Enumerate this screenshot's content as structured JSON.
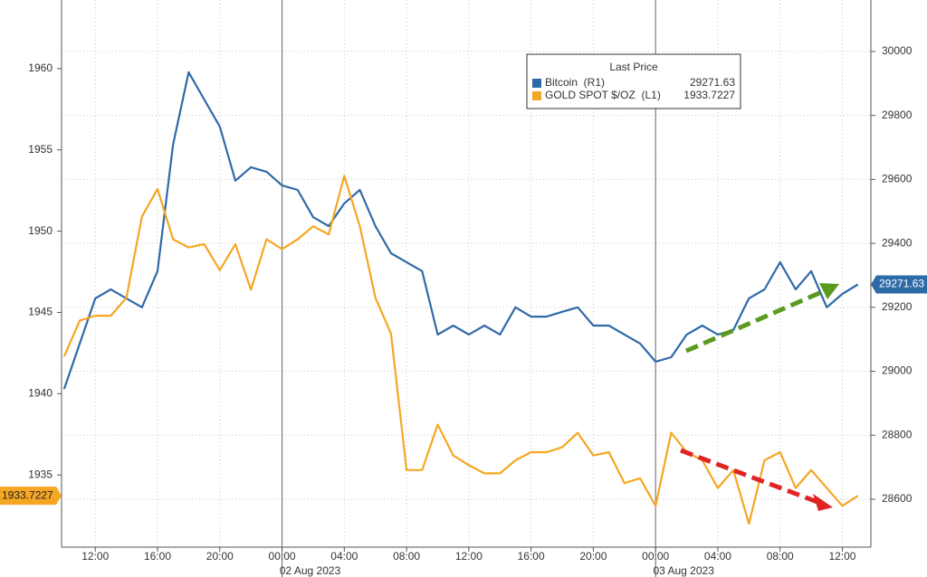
{
  "chart_data": {
    "type": "line",
    "legend_title": "Last Price",
    "date_labels": [
      "02 Aug 2023",
      "03 Aug 2023"
    ],
    "x": [
      "2023-08-01 10:00",
      "2023-08-01 11:00",
      "2023-08-01 12:00",
      "2023-08-01 13:00",
      "2023-08-01 14:00",
      "2023-08-01 15:00",
      "2023-08-01 16:00",
      "2023-08-01 17:00",
      "2023-08-01 18:00",
      "2023-08-01 19:00",
      "2023-08-01 20:00",
      "2023-08-01 21:00",
      "2023-08-01 22:00",
      "2023-08-01 23:00",
      "2023-08-02 00:00",
      "2023-08-02 01:00",
      "2023-08-02 02:00",
      "2023-08-02 03:00",
      "2023-08-02 04:00",
      "2023-08-02 05:00",
      "2023-08-02 06:00",
      "2023-08-02 07:00",
      "2023-08-02 08:00",
      "2023-08-02 09:00",
      "2023-08-02 10:00",
      "2023-08-02 11:00",
      "2023-08-02 12:00",
      "2023-08-02 13:00",
      "2023-08-02 14:00",
      "2023-08-02 15:00",
      "2023-08-02 16:00",
      "2023-08-02 17:00",
      "2023-08-02 18:00",
      "2023-08-02 19:00",
      "2023-08-02 20:00",
      "2023-08-02 21:00",
      "2023-08-02 22:00",
      "2023-08-02 23:00",
      "2023-08-03 00:00",
      "2023-08-03 01:00",
      "2023-08-03 02:00",
      "2023-08-03 03:00",
      "2023-08-03 04:00",
      "2023-08-03 05:00",
      "2023-08-03 06:00",
      "2023-08-03 07:00",
      "2023-08-03 08:00",
      "2023-08-03 09:00",
      "2023-08-03 10:00",
      "2023-08-03 11:00",
      "2023-08-03 12:00",
      "2023-08-03 13:00"
    ],
    "xlim": [
      "2023-08-01 09:50",
      "2023-08-03 13:50"
    ],
    "xticks": [
      {
        "value": "2023-08-01 12:00",
        "label": "12:00"
      },
      {
        "value": "2023-08-01 16:00",
        "label": "16:00"
      },
      {
        "value": "2023-08-01 20:00",
        "label": "20:00"
      },
      {
        "value": "2023-08-02 00:00",
        "label": "00:00"
      },
      {
        "value": "2023-08-02 04:00",
        "label": "04:00"
      },
      {
        "value": "2023-08-02 08:00",
        "label": "08:00"
      },
      {
        "value": "2023-08-02 12:00",
        "label": "12:00"
      },
      {
        "value": "2023-08-02 16:00",
        "label": "16:00"
      },
      {
        "value": "2023-08-02 20:00",
        "label": "20:00"
      },
      {
        "value": "2023-08-03 00:00",
        "label": "00:00"
      },
      {
        "value": "2023-08-03 04:00",
        "label": "04:00"
      },
      {
        "value": "2023-08-03 08:00",
        "label": "08:00"
      },
      {
        "value": "2023-08-03 12:00",
        "label": "12:00"
      }
    ],
    "ylim": [
      1930.56,
      1964.22
    ],
    "yticks": [
      1935,
      1940,
      1945,
      1950,
      1955,
      1960
    ],
    "y2lim": [
      28450,
      30161
    ],
    "y2ticks": [
      28600,
      28800,
      29000,
      29200,
      29400,
      29600,
      29800,
      30000
    ],
    "grid": true,
    "series": [
      {
        "name": "Bitcoin  (R1)",
        "color": "#2f6aa8",
        "axis": "y2",
        "values": [
          28945,
          29087,
          29228,
          29256,
          29228,
          29200,
          29313,
          29709,
          29935,
          29850,
          29765,
          29596,
          29638,
          29624,
          29581,
          29567,
          29482,
          29454,
          29525,
          29567,
          29454,
          29369,
          29341,
          29313,
          29115,
          29143,
          29115,
          29143,
          29115,
          29200,
          29171,
          29171,
          29186,
          29200,
          29143,
          29143,
          29115,
          29087,
          29030,
          29044,
          29115,
          29143,
          29115,
          29129,
          29228,
          29256,
          29341,
          29256,
          29313,
          29200,
          29242,
          29271.63
        ]
      },
      {
        "name": "GOLD SPOT $/OZ  (L1)",
        "color": "#f5a623",
        "axis": "y",
        "values": [
          1942.3,
          1944.5,
          1944.8,
          1944.8,
          1945.9,
          1950.9,
          1952.6,
          1949.5,
          1949.0,
          1949.2,
          1947.6,
          1949.2,
          1946.4,
          1949.5,
          1948.9,
          1949.5,
          1950.3,
          1949.8,
          1953.4,
          1950.3,
          1945.9,
          1943.7,
          1935.3,
          1935.3,
          1938.1,
          1936.2,
          1935.6,
          1935.1,
          1935.1,
          1935.9,
          1936.4,
          1936.4,
          1936.7,
          1937.6,
          1936.2,
          1936.4,
          1934.5,
          1934.8,
          1933.1,
          1937.6,
          1936.4,
          1935.9,
          1934.2,
          1935.3,
          1932.0,
          1935.9,
          1936.4,
          1934.2,
          1935.3,
          1934.2,
          1933.1,
          1933.7227
        ]
      }
    ]
  }
}
